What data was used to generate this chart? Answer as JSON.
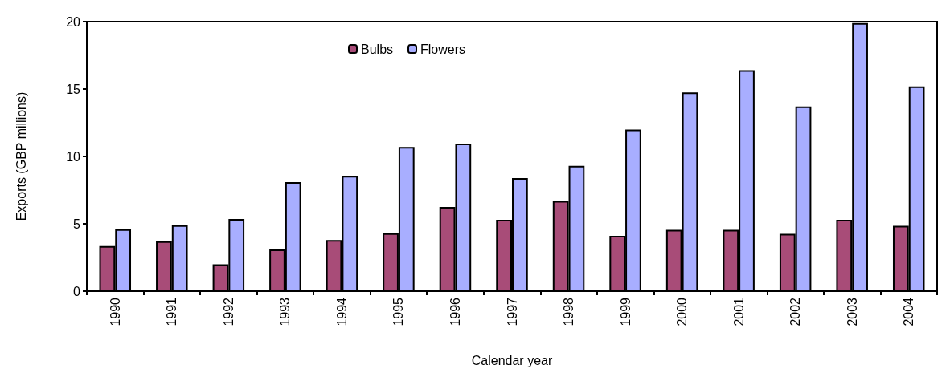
{
  "chart_data": {
    "type": "bar",
    "xlabel": "Calendar year",
    "ylabel": "Exports (GBP millions)",
    "categories": [
      "1990",
      "1991",
      "1992",
      "1993",
      "1994",
      "1995",
      "1996",
      "1997",
      "1998",
      "1999",
      "2000",
      "2001",
      "2002",
      "2003",
      "2004"
    ],
    "series": [
      {
        "name": "Bulbs",
        "color": "#a84c78",
        "values": [
          3.35,
          3.7,
          2.0,
          3.1,
          3.8,
          4.3,
          6.25,
          5.3,
          6.7,
          4.1,
          4.55,
          4.55,
          4.25,
          5.3,
          4.85
        ]
      },
      {
        "name": "Flowers",
        "color": "#a8aeff",
        "values": [
          4.6,
          4.9,
          5.35,
          8.1,
          8.55,
          10.7,
          10.95,
          8.4,
          9.3,
          12.0,
          14.75,
          16.4,
          13.7,
          19.9,
          15.2
        ]
      }
    ],
    "ylim": [
      0,
      20
    ],
    "yticks": [
      0,
      5,
      10,
      15,
      20
    ],
    "grid": false,
    "legend": "top"
  }
}
